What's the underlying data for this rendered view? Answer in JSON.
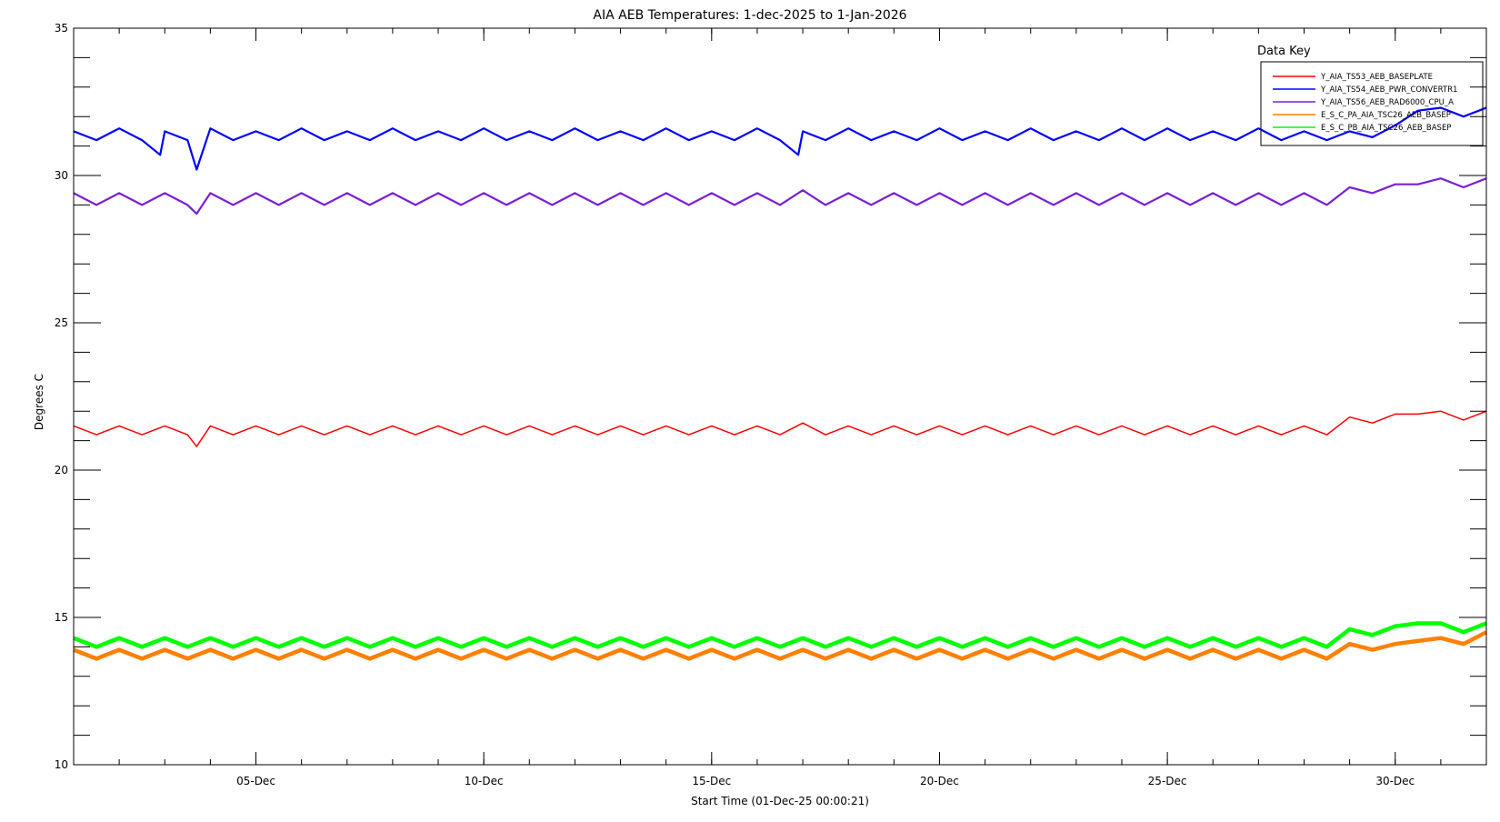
{
  "chart_data": {
    "type": "line",
    "title": "AIA AEB Temperatures: 1-dec-2025 to 1-Jan-2026",
    "xlabel": "Start Time (01-Dec-25 00:00:21)",
    "ylabel": "Degrees C",
    "xlim": [
      1,
      32
    ],
    "ylim": [
      10,
      35
    ],
    "grid": false,
    "x_unit": "day of Dec 2025",
    "x_ticks": [
      {
        "value": 5,
        "label": "05-Dec"
      },
      {
        "value": 10,
        "label": "10-Dec"
      },
      {
        "value": 15,
        "label": "15-Dec"
      },
      {
        "value": 20,
        "label": "20-Dec"
      },
      {
        "value": 25,
        "label": "25-Dec"
      },
      {
        "value": 30,
        "label": "30-Dec"
      }
    ],
    "y_ticks": [
      {
        "value": 10,
        "label": "10"
      },
      {
        "value": 15,
        "label": "15"
      },
      {
        "value": 20,
        "label": "20"
      },
      {
        "value": 25,
        "label": "25"
      },
      {
        "value": 30,
        "label": "30"
      },
      {
        "value": 35,
        "label": "35"
      }
    ],
    "legend": {
      "title": "Data Key",
      "placement": "top-right"
    },
    "series": [
      {
        "name": "Y_AIA_TS53_AEB_BASEPLATE",
        "color": "#ff0000",
        "x": [
          1.0,
          1.5,
          2.0,
          2.5,
          3.0,
          3.5,
          3.7,
          4.0,
          4.5,
          5.0,
          5.5,
          6.0,
          6.5,
          7.0,
          7.5,
          8.0,
          8.5,
          9.0,
          9.5,
          10.0,
          10.5,
          11.0,
          11.5,
          12.0,
          12.5,
          13.0,
          13.5,
          14.0,
          14.5,
          15.0,
          15.5,
          16.0,
          16.5,
          17.0,
          17.5,
          18.0,
          18.5,
          19.0,
          19.5,
          20.0,
          20.5,
          21.0,
          21.5,
          22.0,
          22.5,
          23.0,
          23.5,
          24.0,
          24.5,
          25.0,
          25.5,
          26.0,
          26.5,
          27.0,
          27.5,
          28.0,
          28.5,
          29.0,
          29.5,
          30.0,
          30.5,
          31.0,
          31.5,
          32.0
        ],
        "y": [
          21.5,
          21.2,
          21.5,
          21.2,
          21.5,
          21.2,
          20.8,
          21.5,
          21.2,
          21.5,
          21.2,
          21.5,
          21.2,
          21.5,
          21.2,
          21.5,
          21.2,
          21.5,
          21.2,
          21.5,
          21.2,
          21.5,
          21.2,
          21.5,
          21.2,
          21.5,
          21.2,
          21.5,
          21.2,
          21.5,
          21.2,
          21.5,
          21.2,
          21.6,
          21.2,
          21.5,
          21.2,
          21.5,
          21.2,
          21.5,
          21.2,
          21.5,
          21.2,
          21.5,
          21.2,
          21.5,
          21.2,
          21.5,
          21.2,
          21.5,
          21.2,
          21.5,
          21.2,
          21.5,
          21.2,
          21.5,
          21.2,
          21.8,
          21.6,
          21.9,
          21.9,
          22.0,
          21.7,
          22.0
        ]
      },
      {
        "name": "Y_AIA_TS54_AEB_PWR_CONVERTR1",
        "color": "#0000ff",
        "x": [
          1.0,
          1.5,
          2.0,
          2.5,
          2.9,
          3.0,
          3.5,
          3.7,
          4.0,
          4.5,
          5.0,
          5.5,
          6.0,
          6.5,
          7.0,
          7.5,
          8.0,
          8.5,
          9.0,
          9.5,
          10.0,
          10.5,
          11.0,
          11.5,
          12.0,
          12.5,
          13.0,
          13.5,
          14.0,
          14.5,
          15.0,
          15.5,
          16.0,
          16.5,
          16.9,
          17.0,
          17.5,
          18.0,
          18.5,
          19.0,
          19.5,
          20.0,
          20.5,
          21.0,
          21.5,
          22.0,
          22.5,
          23.0,
          23.5,
          24.0,
          24.5,
          25.0,
          25.5,
          26.0,
          26.5,
          27.0,
          27.5,
          28.0,
          28.5,
          29.0,
          29.5,
          30.0,
          30.5,
          31.0,
          31.5,
          32.0
        ],
        "y": [
          31.5,
          31.2,
          31.6,
          31.2,
          30.7,
          31.5,
          31.2,
          30.2,
          31.6,
          31.2,
          31.5,
          31.2,
          31.6,
          31.2,
          31.5,
          31.2,
          31.6,
          31.2,
          31.5,
          31.2,
          31.6,
          31.2,
          31.5,
          31.2,
          31.6,
          31.2,
          31.5,
          31.2,
          31.6,
          31.2,
          31.5,
          31.2,
          31.6,
          31.2,
          30.7,
          31.5,
          31.2,
          31.6,
          31.2,
          31.5,
          31.2,
          31.6,
          31.2,
          31.5,
          31.2,
          31.6,
          31.2,
          31.5,
          31.2,
          31.6,
          31.2,
          31.6,
          31.2,
          31.5,
          31.2,
          31.6,
          31.2,
          31.5,
          31.2,
          31.5,
          31.3,
          31.7,
          32.2,
          32.3,
          32.0,
          32.3
        ]
      },
      {
        "name": "Y_AIA_TS56_AEB_RAD6000_CPU_A",
        "color": "#7a1fd6",
        "x": [
          1.0,
          1.5,
          2.0,
          2.5,
          3.0,
          3.5,
          3.7,
          4.0,
          4.5,
          5.0,
          5.5,
          6.0,
          6.5,
          7.0,
          7.5,
          8.0,
          8.5,
          9.0,
          9.5,
          10.0,
          10.5,
          11.0,
          11.5,
          12.0,
          12.5,
          13.0,
          13.5,
          14.0,
          14.5,
          15.0,
          15.5,
          16.0,
          16.5,
          17.0,
          17.5,
          18.0,
          18.5,
          19.0,
          19.5,
          20.0,
          20.5,
          21.0,
          21.5,
          22.0,
          22.5,
          23.0,
          23.5,
          24.0,
          24.5,
          25.0,
          25.5,
          26.0,
          26.5,
          27.0,
          27.5,
          28.0,
          28.5,
          29.0,
          29.5,
          30.0,
          30.5,
          31.0,
          31.5,
          32.0
        ],
        "y": [
          29.4,
          29.0,
          29.4,
          29.0,
          29.4,
          29.0,
          28.7,
          29.4,
          29.0,
          29.4,
          29.0,
          29.4,
          29.0,
          29.4,
          29.0,
          29.4,
          29.0,
          29.4,
          29.0,
          29.4,
          29.0,
          29.4,
          29.0,
          29.4,
          29.0,
          29.4,
          29.0,
          29.4,
          29.0,
          29.4,
          29.0,
          29.4,
          29.0,
          29.5,
          29.0,
          29.4,
          29.0,
          29.4,
          29.0,
          29.4,
          29.0,
          29.4,
          29.0,
          29.4,
          29.0,
          29.4,
          29.0,
          29.4,
          29.0,
          29.4,
          29.0,
          29.4,
          29.0,
          29.4,
          29.0,
          29.4,
          29.0,
          29.6,
          29.4,
          29.7,
          29.7,
          29.9,
          29.6,
          29.9
        ]
      },
      {
        "name": "E_S_C_PA_AIA_TSC26_AEB_BASEP",
        "color": "#ff8000",
        "x": [
          1.0,
          1.5,
          2.0,
          2.5,
          3.0,
          3.5,
          4.0,
          4.5,
          5.0,
          5.5,
          6.0,
          6.5,
          7.0,
          7.5,
          8.0,
          8.5,
          9.0,
          9.5,
          10.0,
          10.5,
          11.0,
          11.5,
          12.0,
          12.5,
          13.0,
          13.5,
          14.0,
          14.5,
          15.0,
          15.5,
          16.0,
          16.5,
          17.0,
          17.5,
          18.0,
          18.5,
          19.0,
          19.5,
          20.0,
          20.5,
          21.0,
          21.5,
          22.0,
          22.5,
          23.0,
          23.5,
          24.0,
          24.5,
          25.0,
          25.5,
          26.0,
          26.5,
          27.0,
          27.5,
          28.0,
          28.5,
          29.0,
          29.5,
          30.0,
          30.5,
          31.0,
          31.5,
          32.0
        ],
        "y": [
          13.9,
          13.6,
          13.9,
          13.6,
          13.9,
          13.6,
          13.9,
          13.6,
          13.9,
          13.6,
          13.9,
          13.6,
          13.9,
          13.6,
          13.9,
          13.6,
          13.9,
          13.6,
          13.9,
          13.6,
          13.9,
          13.6,
          13.9,
          13.6,
          13.9,
          13.6,
          13.9,
          13.6,
          13.9,
          13.6,
          13.9,
          13.6,
          13.9,
          13.6,
          13.9,
          13.6,
          13.9,
          13.6,
          13.9,
          13.6,
          13.9,
          13.6,
          13.9,
          13.6,
          13.9,
          13.6,
          13.9,
          13.6,
          13.9,
          13.6,
          13.9,
          13.6,
          13.9,
          13.6,
          13.9,
          13.6,
          14.1,
          13.9,
          14.1,
          14.2,
          14.3,
          14.1,
          14.5
        ]
      },
      {
        "name": "E_S_C_PB_AIA_TSC26_AEB_BASEP",
        "color": "#00ff00",
        "x": [
          1.0,
          1.5,
          2.0,
          2.5,
          3.0,
          3.5,
          4.0,
          4.5,
          5.0,
          5.5,
          6.0,
          6.5,
          7.0,
          7.5,
          8.0,
          8.5,
          9.0,
          9.5,
          10.0,
          10.5,
          11.0,
          11.5,
          12.0,
          12.5,
          13.0,
          13.5,
          14.0,
          14.5,
          15.0,
          15.5,
          16.0,
          16.5,
          17.0,
          17.5,
          18.0,
          18.5,
          19.0,
          19.5,
          20.0,
          20.5,
          21.0,
          21.5,
          22.0,
          22.5,
          23.0,
          23.5,
          24.0,
          24.5,
          25.0,
          25.5,
          26.0,
          26.5,
          27.0,
          27.5,
          28.0,
          28.5,
          29.0,
          29.5,
          30.0,
          30.5,
          31.0,
          31.5,
          32.0
        ],
        "y": [
          14.3,
          14.0,
          14.3,
          14.0,
          14.3,
          14.0,
          14.3,
          14.0,
          14.3,
          14.0,
          14.3,
          14.0,
          14.3,
          14.0,
          14.3,
          14.0,
          14.3,
          14.0,
          14.3,
          14.0,
          14.3,
          14.0,
          14.3,
          14.0,
          14.3,
          14.0,
          14.3,
          14.0,
          14.3,
          14.0,
          14.3,
          14.0,
          14.3,
          14.0,
          14.3,
          14.0,
          14.3,
          14.0,
          14.3,
          14.0,
          14.3,
          14.0,
          14.3,
          14.0,
          14.3,
          14.0,
          14.3,
          14.0,
          14.3,
          14.0,
          14.3,
          14.0,
          14.3,
          14.0,
          14.3,
          14.0,
          14.6,
          14.4,
          14.7,
          14.8,
          14.8,
          14.5,
          14.8
        ]
      }
    ]
  }
}
